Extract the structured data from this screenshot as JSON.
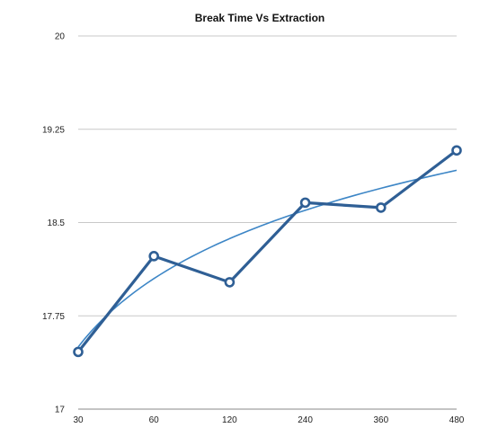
{
  "chart_data": {
    "type": "line",
    "title": "Break Time Vs Extraction",
    "xlabel": "",
    "ylabel": "",
    "categories": [
      "30",
      "60",
      "120",
      "240",
      "360",
      "480"
    ],
    "series": [
      {
        "values": [
          17.46,
          18.23,
          18.02,
          18.66,
          18.62,
          19.08
        ]
      }
    ],
    "trendline": {
      "type": "logarithmic",
      "start": 17.5,
      "end": 18.92
    },
    "y_ticks": [
      "20",
      "19.25",
      "18.5",
      "17.75",
      "17"
    ],
    "ylim": [
      17,
      20
    ],
    "grid": true,
    "legend": "none",
    "colors": {
      "series": "#2f5f95",
      "trendline": "#3d86c6",
      "grid": "#c8c8c8"
    }
  }
}
